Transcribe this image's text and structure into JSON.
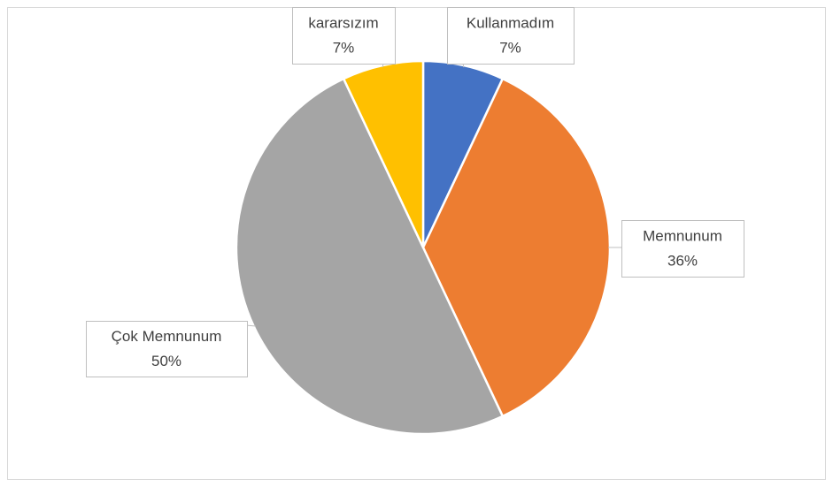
{
  "chart_data": {
    "type": "pie",
    "categories": [
      "Kullanmadım",
      "Memnunum",
      "Çok Memnunum",
      "kararsızım"
    ],
    "values": [
      7,
      36,
      50,
      7
    ],
    "value_labels": [
      "7%",
      "36%",
      "50%",
      "7%"
    ],
    "colors": [
      "#4472c4",
      "#ed7d31",
      "#a5a5a5",
      "#ffc000"
    ]
  }
}
